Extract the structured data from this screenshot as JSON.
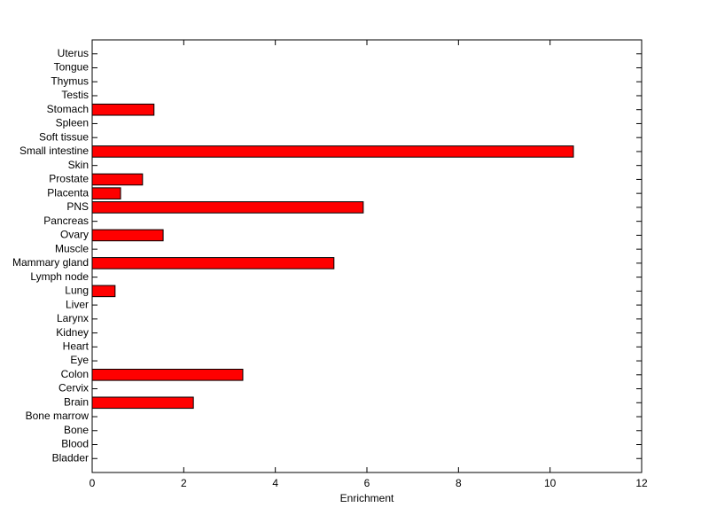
{
  "chart_data": {
    "type": "hbar",
    "x_label": "Enrichment",
    "categories": [
      "Bladder",
      "Blood",
      "Bone",
      "Bone marrow",
      "Brain",
      "Cervix",
      "Colon",
      "Eye",
      "Heart",
      "Kidney",
      "Larynx",
      "Liver",
      "Lung",
      "Lymph node",
      "Mammary gland",
      "Muscle",
      "Ovary",
      "Pancreas",
      "PNS",
      "Placenta",
      "Prostate",
      "Skin",
      "Small intestine",
      "Soft tissue",
      "Spleen",
      "Stomach",
      "Testis",
      "Thymus",
      "Tongue",
      "Uterus"
    ],
    "values": [
      0,
      0,
      0,
      0,
      2.21,
      0,
      3.29,
      0,
      0,
      0,
      0,
      0,
      0.5,
      0,
      5.28,
      0,
      1.55,
      0,
      5.92,
      0.62,
      1.1,
      0,
      10.51,
      0,
      0,
      1.35,
      0,
      0,
      0,
      0
    ],
    "color": "#ff0000",
    "xlim": [
      0,
      12
    ],
    "xticks": [
      0,
      2,
      4,
      6,
      8,
      10,
      12
    ],
    "grid": false
  }
}
